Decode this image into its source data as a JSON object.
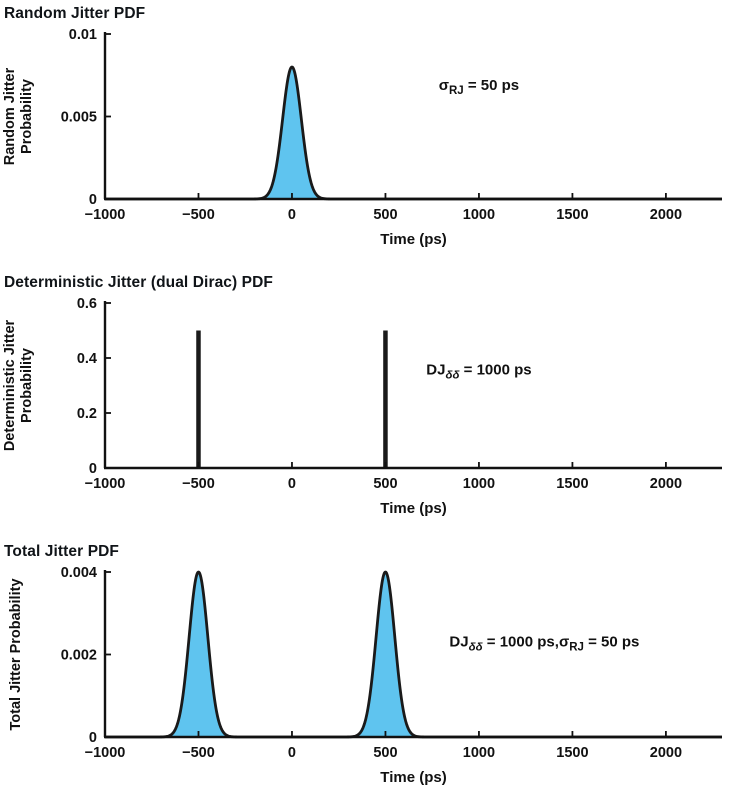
{
  "page": {
    "background": "#ffffff",
    "text_color": "#111111"
  },
  "chart_data": [
    {
      "type": "area",
      "title": "Random Jitter PDF",
      "xlabel": "Time (ps)",
      "ylabel_lines": [
        "Random Jitter",
        "Probability"
      ],
      "xlim": [
        -1000,
        2300
      ],
      "ylim": [
        0,
        0.01
      ],
      "xticks": [
        -1000,
        -500,
        0,
        500,
        1000,
        1500,
        2000
      ],
      "xtick_labels": [
        "−1000",
        "−500",
        "0",
        "500",
        "1000",
        "1500",
        "2000"
      ],
      "yticks": [
        0,
        0.005,
        0.01
      ],
      "ytick_labels": [
        "0",
        "0.005",
        "0.01"
      ],
      "peaks": [
        {
          "center": 0,
          "sigma": 50,
          "height": 0.008
        }
      ],
      "annotation": {
        "x": 1000,
        "y": 0.0066,
        "segments": [
          {
            "t": "σ"
          },
          {
            "t": "RJ",
            "sub": true
          },
          {
            "t": " = 50 ps"
          }
        ]
      },
      "colors": {
        "fill": "#5fc4ef",
        "line": "#1a1a1a"
      },
      "grid": false,
      "legend": "none"
    },
    {
      "type": "impulse",
      "title": "Deterministic Jitter (dual Dirac) PDF",
      "xlabel": "Time (ps)",
      "ylabel_lines": [
        "Deterministic Jitter",
        "Probability"
      ],
      "xlim": [
        -1000,
        2300
      ],
      "ylim": [
        0,
        0.6
      ],
      "xticks": [
        -1000,
        -500,
        0,
        500,
        1000,
        1500,
        2000
      ],
      "xtick_labels": [
        "−1000",
        "−500",
        "0",
        "500",
        "1000",
        "1500",
        "2000"
      ],
      "yticks": [
        0,
        0.2,
        0.4,
        0.6
      ],
      "ytick_labels": [
        "0",
        "0.2",
        "0.4",
        "0.6"
      ],
      "impulses": [
        {
          "x": -500,
          "height": 0.5
        },
        {
          "x": 500,
          "height": 0.5
        }
      ],
      "annotation": {
        "x": 1000,
        "y": 0.34,
        "segments": [
          {
            "t": "DJ"
          },
          {
            "t": "δδ",
            "sub": true,
            "italic": true
          },
          {
            "t": " = 1000 ps"
          }
        ]
      },
      "colors": {
        "fill": "none",
        "line": "#1a1a1a"
      },
      "grid": false,
      "legend": "none"
    },
    {
      "type": "area",
      "title": "Total Jitter PDF",
      "xlabel": "Time (ps)",
      "ylabel_lines": [
        "Total Jitter Probability"
      ],
      "xlim": [
        -1000,
        2300
      ],
      "ylim": [
        0,
        0.004
      ],
      "xticks": [
        -1000,
        -500,
        0,
        500,
        1000,
        1500,
        2000
      ],
      "xtick_labels": [
        "−1000",
        "−500",
        "0",
        "500",
        "1000",
        "1500",
        "2000"
      ],
      "yticks": [
        0,
        0.002,
        0.004
      ],
      "ytick_labels": [
        "0",
        "0.002",
        "0.004"
      ],
      "peaks": [
        {
          "center": -500,
          "sigma": 50,
          "height": 0.004
        },
        {
          "center": 500,
          "sigma": 50,
          "height": 0.004
        }
      ],
      "annotation": {
        "x": 1350,
        "y": 0.0022,
        "segments": [
          {
            "t": "DJ"
          },
          {
            "t": "δδ",
            "sub": true,
            "italic": true
          },
          {
            "t": " = 1000 ps,"
          },
          {
            "t": "σ"
          },
          {
            "t": "RJ",
            "sub": true
          },
          {
            "t": " = 50 ps"
          }
        ]
      },
      "colors": {
        "fill": "#5fc4ef",
        "line": "#1a1a1a"
      },
      "grid": false,
      "legend": "none"
    }
  ]
}
